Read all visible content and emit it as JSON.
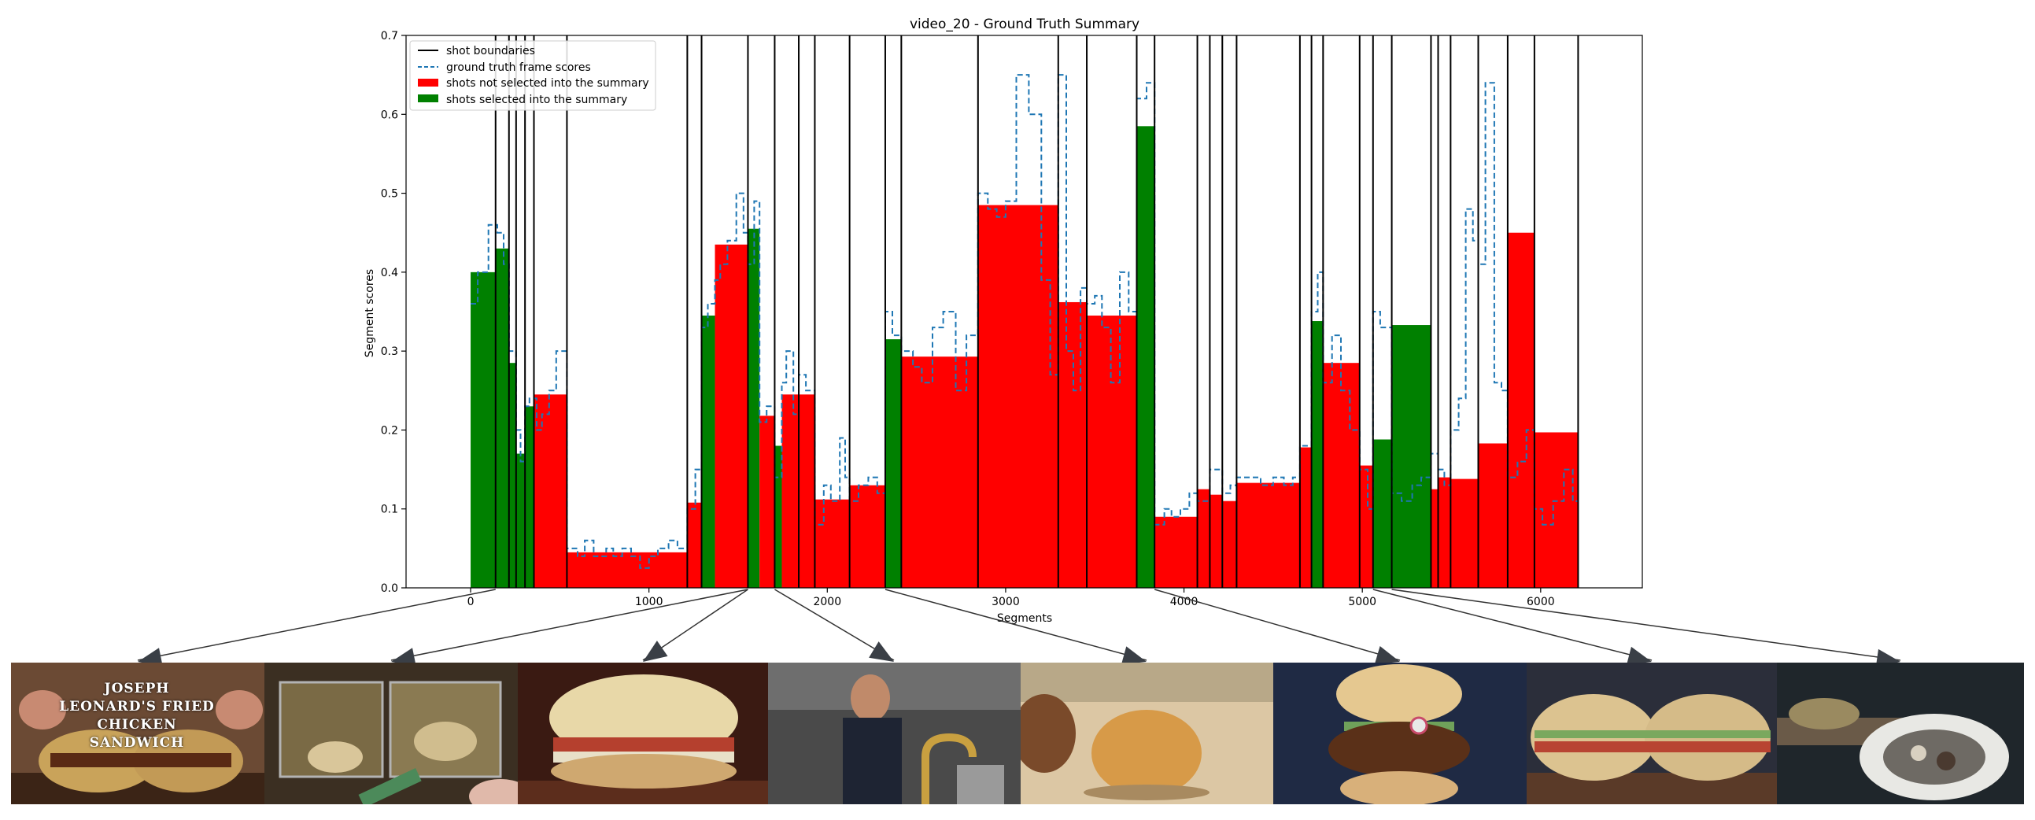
{
  "chart_data": {
    "type": "bar",
    "title": "video_20 - Ground Truth Summary",
    "xlabel": "Segments",
    "ylabel": "Segment scores",
    "xlim": [
      -362,
      6570
    ],
    "ylim": [
      0,
      0.7
    ],
    "xticks": [
      0,
      1000,
      2000,
      3000,
      4000,
      5000,
      6000
    ],
    "yticks": [
      0.0,
      0.1,
      0.2,
      0.3,
      0.4,
      0.5,
      0.6,
      0.7
    ],
    "legend_position": "top-left",
    "legend": [
      {
        "label": "shot boundaries",
        "kind": "solid-line",
        "color": "#000000"
      },
      {
        "label": "ground truth frame scores",
        "kind": "dashed-line",
        "color": "#1f77b4"
      },
      {
        "label": "shots not selected into the summary",
        "kind": "patch",
        "color": "#ff0000"
      },
      {
        "label": "shots selected into the summary",
        "kind": "patch",
        "color": "#008000"
      }
    ],
    "shot_boundaries": [
      140,
      215,
      255,
      305,
      355,
      540,
      1215,
      1295,
      1555,
      1705,
      1840,
      1930,
      2125,
      2325,
      2415,
      2845,
      3295,
      3455,
      3735,
      3835,
      4075,
      4145,
      4215,
      4295,
      4650,
      4715,
      4780,
      4985,
      5060,
      5165,
      5385,
      5425,
      5495,
      5650,
      5815,
      5965,
      6210
    ],
    "shots": [
      {
        "start": 0,
        "end": 140,
        "score": 0.4,
        "selected": true
      },
      {
        "start": 140,
        "end": 215,
        "score": 0.43,
        "selected": true
      },
      {
        "start": 215,
        "end": 255,
        "score": 0.285,
        "selected": true
      },
      {
        "start": 255,
        "end": 305,
        "score": 0.17,
        "selected": true
      },
      {
        "start": 305,
        "end": 355,
        "score": 0.23,
        "selected": true
      },
      {
        "start": 355,
        "end": 540,
        "score": 0.245,
        "selected": false
      },
      {
        "start": 540,
        "end": 1215,
        "score": 0.045,
        "selected": false
      },
      {
        "start": 1215,
        "end": 1295,
        "score": 0.108,
        "selected": false
      },
      {
        "start": 1295,
        "end": 1370,
        "score": 0.345,
        "selected": true
      },
      {
        "start": 1370,
        "end": 1555,
        "score": 0.435,
        "selected": false
      },
      {
        "start": 1555,
        "end": 1620,
        "score": 0.455,
        "selected": true
      },
      {
        "start": 1620,
        "end": 1705,
        "score": 0.218,
        "selected": false
      },
      {
        "start": 1705,
        "end": 1745,
        "score": 0.18,
        "selected": true
      },
      {
        "start": 1745,
        "end": 1930,
        "score": 0.245,
        "selected": false
      },
      {
        "start": 1930,
        "end": 2125,
        "score": 0.112,
        "selected": false
      },
      {
        "start": 2125,
        "end": 2325,
        "score": 0.13,
        "selected": false
      },
      {
        "start": 2325,
        "end": 2415,
        "score": 0.315,
        "selected": true
      },
      {
        "start": 2415,
        "end": 2845,
        "score": 0.293,
        "selected": false
      },
      {
        "start": 2845,
        "end": 3295,
        "score": 0.485,
        "selected": false
      },
      {
        "start": 3295,
        "end": 3455,
        "score": 0.362,
        "selected": false
      },
      {
        "start": 3455,
        "end": 3735,
        "score": 0.345,
        "selected": false
      },
      {
        "start": 3735,
        "end": 3835,
        "score": 0.585,
        "selected": true
      },
      {
        "start": 3835,
        "end": 4075,
        "score": 0.09,
        "selected": false
      },
      {
        "start": 4075,
        "end": 4145,
        "score": 0.125,
        "selected": false
      },
      {
        "start": 4145,
        "end": 4215,
        "score": 0.118,
        "selected": false
      },
      {
        "start": 4215,
        "end": 4295,
        "score": 0.11,
        "selected": false
      },
      {
        "start": 4295,
        "end": 4650,
        "score": 0.133,
        "selected": false
      },
      {
        "start": 4650,
        "end": 4715,
        "score": 0.178,
        "selected": false
      },
      {
        "start": 4715,
        "end": 4780,
        "score": 0.338,
        "selected": true
      },
      {
        "start": 4780,
        "end": 4985,
        "score": 0.285,
        "selected": false
      },
      {
        "start": 4985,
        "end": 5060,
        "score": 0.155,
        "selected": false
      },
      {
        "start": 5060,
        "end": 5165,
        "score": 0.188,
        "selected": true
      },
      {
        "start": 5165,
        "end": 5385,
        "score": 0.333,
        "selected": true
      },
      {
        "start": 5385,
        "end": 5425,
        "score": 0.125,
        "selected": false
      },
      {
        "start": 5425,
        "end": 5495,
        "score": 0.14,
        "selected": false
      },
      {
        "start": 5495,
        "end": 5650,
        "score": 0.138,
        "selected": false
      },
      {
        "start": 5650,
        "end": 5815,
        "score": 0.183,
        "selected": false
      },
      {
        "start": 5815,
        "end": 5965,
        "score": 0.45,
        "selected": false
      },
      {
        "start": 5965,
        "end": 6210,
        "score": 0.197,
        "selected": false
      },
      {
        "start": 6210,
        "end": 6210,
        "score": 0.112,
        "selected": false
      }
    ],
    "frame_scores": [
      [
        0,
        0.36
      ],
      [
        40,
        0.4
      ],
      [
        100,
        0.46
      ],
      [
        150,
        0.45
      ],
      [
        185,
        0.41
      ],
      [
        215,
        0.3
      ],
      [
        255,
        0.2
      ],
      [
        280,
        0.16
      ],
      [
        305,
        0.23
      ],
      [
        330,
        0.24
      ],
      [
        370,
        0.2
      ],
      [
        400,
        0.22
      ],
      [
        440,
        0.25
      ],
      [
        480,
        0.3
      ],
      [
        540,
        0.05
      ],
      [
        600,
        0.04
      ],
      [
        640,
        0.06
      ],
      [
        690,
        0.04
      ],
      [
        760,
        0.05
      ],
      [
        800,
        0.04
      ],
      [
        850,
        0.05
      ],
      [
        900,
        0.04
      ],
      [
        950,
        0.025
      ],
      [
        1000,
        0.04
      ],
      [
        1050,
        0.05
      ],
      [
        1110,
        0.06
      ],
      [
        1160,
        0.05
      ],
      [
        1215,
        0.1
      ],
      [
        1260,
        0.15
      ],
      [
        1295,
        0.33
      ],
      [
        1330,
        0.36
      ],
      [
        1370,
        0.39
      ],
      [
        1400,
        0.41
      ],
      [
        1440,
        0.44
      ],
      [
        1490,
        0.5
      ],
      [
        1530,
        0.45
      ],
      [
        1555,
        0.41
      ],
      [
        1590,
        0.49
      ],
      [
        1620,
        0.21
      ],
      [
        1660,
        0.23
      ],
      [
        1705,
        0.14
      ],
      [
        1745,
        0.26
      ],
      [
        1770,
        0.3
      ],
      [
        1810,
        0.22
      ],
      [
        1840,
        0.27
      ],
      [
        1880,
        0.25
      ],
      [
        1930,
        0.08
      ],
      [
        1980,
        0.13
      ],
      [
        2020,
        0.11
      ],
      [
        2070,
        0.19
      ],
      [
        2100,
        0.14
      ],
      [
        2125,
        0.11
      ],
      [
        2175,
        0.13
      ],
      [
        2230,
        0.14
      ],
      [
        2280,
        0.12
      ],
      [
        2325,
        0.35
      ],
      [
        2365,
        0.32
      ],
      [
        2415,
        0.3
      ],
      [
        2480,
        0.28
      ],
      [
        2530,
        0.26
      ],
      [
        2590,
        0.33
      ],
      [
        2650,
        0.35
      ],
      [
        2720,
        0.25
      ],
      [
        2780,
        0.32
      ],
      [
        2845,
        0.5
      ],
      [
        2900,
        0.48
      ],
      [
        2950,
        0.47
      ],
      [
        3000,
        0.49
      ],
      [
        3060,
        0.65
      ],
      [
        3130,
        0.6
      ],
      [
        3200,
        0.39
      ],
      [
        3250,
        0.27
      ],
      [
        3295,
        0.65
      ],
      [
        3340,
        0.3
      ],
      [
        3380,
        0.25
      ],
      [
        3420,
        0.38
      ],
      [
        3455,
        0.36
      ],
      [
        3500,
        0.37
      ],
      [
        3540,
        0.33
      ],
      [
        3590,
        0.26
      ],
      [
        3640,
        0.4
      ],
      [
        3690,
        0.35
      ],
      [
        3735,
        0.62
      ],
      [
        3790,
        0.64
      ],
      [
        3835,
        0.08
      ],
      [
        3890,
        0.1
      ],
      [
        3930,
        0.09
      ],
      [
        3980,
        0.1
      ],
      [
        4030,
        0.12
      ],
      [
        4075,
        0.11
      ],
      [
        4145,
        0.15
      ],
      [
        4215,
        0.12
      ],
      [
        4260,
        0.13
      ],
      [
        4295,
        0.14
      ],
      [
        4360,
        0.14
      ],
      [
        4430,
        0.13
      ],
      [
        4500,
        0.14
      ],
      [
        4560,
        0.13
      ],
      [
        4610,
        0.14
      ],
      [
        4650,
        0.18
      ],
      [
        4715,
        0.35
      ],
      [
        4750,
        0.4
      ],
      [
        4780,
        0.26
      ],
      [
        4830,
        0.32
      ],
      [
        4880,
        0.25
      ],
      [
        4930,
        0.2
      ],
      [
        4985,
        0.15
      ],
      [
        5030,
        0.1
      ],
      [
        5060,
        0.35
      ],
      [
        5100,
        0.33
      ],
      [
        5165,
        0.12
      ],
      [
        5220,
        0.11
      ],
      [
        5280,
        0.13
      ],
      [
        5330,
        0.14
      ],
      [
        5385,
        0.17
      ],
      [
        5425,
        0.15
      ],
      [
        5460,
        0.13
      ],
      [
        5495,
        0.2
      ],
      [
        5540,
        0.24
      ],
      [
        5580,
        0.48
      ],
      [
        5620,
        0.44
      ],
      [
        5650,
        0.41
      ],
      [
        5690,
        0.64
      ],
      [
        5740,
        0.26
      ],
      [
        5780,
        0.25
      ],
      [
        5815,
        0.14
      ],
      [
        5870,
        0.16
      ],
      [
        5920,
        0.2
      ],
      [
        5965,
        0.1
      ],
      [
        6010,
        0.08
      ],
      [
        6070,
        0.11
      ],
      [
        6130,
        0.15
      ],
      [
        6180,
        0.11
      ]
    ]
  },
  "thumbnails": [
    {
      "caption": "JOSEPH LEONARD'S FRIED CHICKEN SANDWICH",
      "frame": 140
    },
    {
      "caption": "",
      "frame": 1555
    },
    {
      "caption": "",
      "frame": 1555
    },
    {
      "caption": "",
      "frame": 1705
    },
    {
      "caption": "",
      "frame": 2325
    },
    {
      "caption": "",
      "frame": 3835
    },
    {
      "caption": "",
      "frame": 5060
    },
    {
      "caption": "",
      "frame": 5165
    }
  ]
}
